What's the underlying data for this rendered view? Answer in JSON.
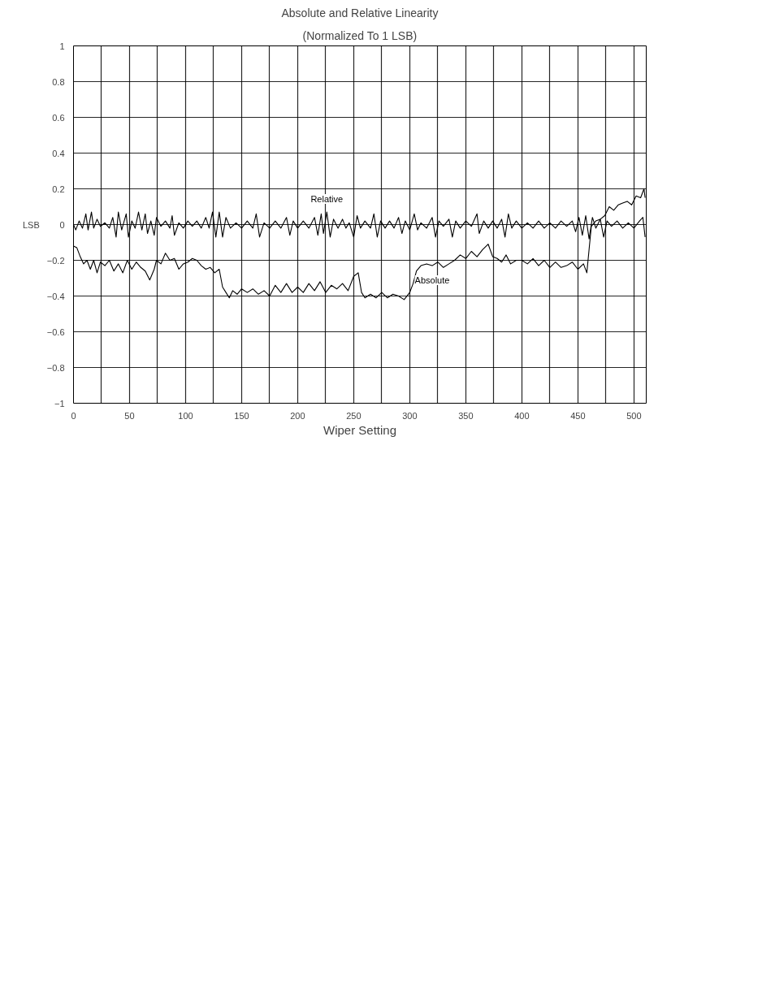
{
  "chart_data": {
    "type": "line",
    "title": "Absolute and Relative Linearity",
    "subtitle": "(Normalized To 1 LSB)",
    "xlabel": "Wiper Setting",
    "ylabel": "LSB",
    "xlim": [
      0,
      511
    ],
    "xticks": [
      0,
      {
        "value": 25,
        "label": null
      },
      50,
      {
        "value": 75,
        "label": null
      },
      100,
      {
        "value": 125,
        "label": null
      },
      150,
      {
        "value": 175,
        "label": null
      },
      200,
      {
        "value": 225,
        "label": null
      },
      250,
      {
        "value": 275,
        "label": null
      },
      300,
      {
        "value": 325,
        "label": null
      },
      350,
      {
        "value": 375,
        "label": null
      },
      400,
      {
        "value": 425,
        "label": null
      },
      450,
      {
        "value": 475,
        "label": null
      },
      500
    ],
    "ylim": [
      -1,
      1
    ],
    "yticks": [
      {
        "value": -1,
        "label": "−1"
      },
      {
        "value": -0.8,
        "label": "−0.8"
      },
      {
        "value": -0.6,
        "label": "−0.6"
      },
      {
        "value": -0.4,
        "label": "−0.4"
      },
      {
        "value": -0.2,
        "label": "−0.2"
      },
      0,
      0.2,
      0.4,
      0.6,
      0.8,
      1
    ],
    "grid": true,
    "marker": "none",
    "line_style": "solid",
    "series": [
      {
        "name": "Relative",
        "color": "#000000",
        "x": [
          0,
          2,
          5,
          8,
          11,
          13,
          16,
          18,
          21,
          24,
          28,
          32,
          35,
          38,
          40,
          43,
          47,
          49,
          52,
          55,
          58,
          61,
          64,
          66,
          69,
          72,
          74,
          78,
          82,
          86,
          88,
          90,
          94,
          98,
          102,
          106,
          110,
          114,
          118,
          121,
          124,
          127,
          130,
          133,
          136,
          140,
          145,
          150,
          155,
          160,
          163,
          166,
          170,
          175,
          180,
          185,
          190,
          193,
          196,
          200,
          205,
          210,
          215,
          218,
          221,
          223,
          226,
          229,
          232,
          236,
          240,
          243,
          246,
          250,
          253,
          256,
          260,
          265,
          268,
          271,
          274,
          278,
          282,
          286,
          290,
          293,
          296,
          300,
          304,
          307,
          310,
          315,
          320,
          323,
          326,
          330,
          335,
          338,
          341,
          345,
          350,
          355,
          360,
          362,
          366,
          370,
          374,
          378,
          382,
          385,
          388,
          391,
          395,
          400,
          405,
          410,
          415,
          420,
          425,
          430,
          435,
          440,
          445,
          448,
          451,
          454,
          457,
          460,
          463,
          466,
          470,
          473,
          476,
          480,
          485,
          490,
          495,
          500,
          505,
          508,
          510
        ],
        "values": [
          0,
          -0.03,
          0.02,
          -0.02,
          0.06,
          -0.03,
          0.07,
          -0.02,
          0.03,
          -0.01,
          0.01,
          -0.02,
          0.04,
          -0.07,
          0.07,
          -0.03,
          0.06,
          -0.07,
          0.02,
          -0.02,
          0.07,
          -0.03,
          0.06,
          -0.05,
          0.02,
          -0.06,
          0.04,
          -0.01,
          0.02,
          -0.02,
          0.05,
          -0.06,
          0.01,
          -0.02,
          0.02,
          -0.01,
          0.02,
          -0.02,
          0.04,
          -0.02,
          0.07,
          -0.07,
          0.07,
          -0.07,
          0.04,
          -0.02,
          0.01,
          -0.02,
          0.02,
          -0.02,
          0.06,
          -0.07,
          0.01,
          -0.02,
          0.02,
          -0.02,
          0.04,
          -0.06,
          0.02,
          -0.02,
          0.02,
          -0.02,
          0.04,
          -0.06,
          0.06,
          -0.05,
          0.07,
          -0.07,
          0.03,
          -0.02,
          0.03,
          -0.02,
          0.01,
          -0.07,
          0.05,
          -0.02,
          0.02,
          -0.02,
          0.06,
          -0.07,
          0.02,
          -0.02,
          0.02,
          -0.02,
          0.04,
          -0.05,
          0.02,
          -0.03,
          0.06,
          -0.03,
          0.01,
          -0.02,
          0.04,
          -0.07,
          0.02,
          -0.01,
          0.03,
          -0.07,
          0.02,
          -0.02,
          0.02,
          -0.01,
          0.06,
          -0.05,
          0.02,
          -0.02,
          0.02,
          -0.02,
          0.03,
          -0.07,
          0.06,
          -0.02,
          0.02,
          -0.02,
          0.01,
          -0.02,
          0.02,
          -0.02,
          0.01,
          -0.02,
          0.02,
          -0.01,
          0.02,
          -0.04,
          0.04,
          -0.06,
          0.05,
          -0.08,
          0.04,
          -0.02,
          0.03,
          -0.07,
          0.02,
          -0.01,
          0.02,
          -0.02,
          0.01,
          -0.02,
          0.02,
          0.04,
          -0.07
        ]
      },
      {
        "name": "Absolute",
        "color": "#000000",
        "x": [
          0,
          3,
          6,
          9,
          12,
          15,
          18,
          21,
          24,
          28,
          32,
          36,
          40,
          44,
          48,
          52,
          56,
          60,
          64,
          68,
          72,
          74,
          78,
          82,
          86,
          90,
          94,
          98,
          102,
          106,
          110,
          114,
          118,
          122,
          126,
          130,
          133,
          136,
          139,
          142,
          146,
          150,
          155,
          160,
          165,
          170,
          175,
          180,
          185,
          190,
          195,
          200,
          205,
          210,
          215,
          220,
          225,
          230,
          235,
          240,
          245,
          250,
          254,
          257,
          260,
          265,
          270,
          275,
          280,
          285,
          290,
          295,
          300,
          303,
          306,
          310,
          315,
          320,
          325,
          330,
          335,
          340,
          345,
          350,
          355,
          360,
          365,
          370,
          374,
          378,
          382,
          386,
          390,
          395,
          400,
          405,
          410,
          415,
          420,
          425,
          430,
          435,
          440,
          445,
          450,
          455,
          458,
          460,
          462,
          466,
          470,
          474,
          478,
          482,
          486,
          490,
          494,
          498,
          502,
          506,
          509,
          510
        ],
        "values": [
          -0.12,
          -0.13,
          -0.18,
          -0.22,
          -0.2,
          -0.25,
          -0.2,
          -0.27,
          -0.21,
          -0.23,
          -0.2,
          -0.26,
          -0.22,
          -0.27,
          -0.2,
          -0.25,
          -0.21,
          -0.24,
          -0.26,
          -0.31,
          -0.25,
          -0.2,
          -0.22,
          -0.16,
          -0.2,
          -0.19,
          -0.25,
          -0.22,
          -0.21,
          -0.19,
          -0.2,
          -0.23,
          -0.25,
          -0.24,
          -0.27,
          -0.25,
          -0.35,
          -0.38,
          -0.41,
          -0.37,
          -0.39,
          -0.36,
          -0.38,
          -0.36,
          -0.39,
          -0.37,
          -0.4,
          -0.34,
          -0.38,
          -0.33,
          -0.38,
          -0.35,
          -0.38,
          -0.33,
          -0.37,
          -0.32,
          -0.38,
          -0.34,
          -0.36,
          -0.33,
          -0.37,
          -0.29,
          -0.27,
          -0.38,
          -0.41,
          -0.39,
          -0.41,
          -0.38,
          -0.41,
          -0.39,
          -0.4,
          -0.42,
          -0.38,
          -0.33,
          -0.26,
          -0.23,
          -0.22,
          -0.23,
          -0.21,
          -0.24,
          -0.22,
          -0.2,
          -0.17,
          -0.19,
          -0.15,
          -0.18,
          -0.14,
          -0.11,
          -0.18,
          -0.19,
          -0.21,
          -0.17,
          -0.22,
          -0.2,
          -0.2,
          -0.22,
          -0.19,
          -0.23,
          -0.2,
          -0.24,
          -0.21,
          -0.24,
          -0.23,
          -0.21,
          -0.25,
          -0.22,
          -0.27,
          -0.14,
          -0.01,
          0.02,
          0.03,
          0.05,
          0.1,
          0.08,
          0.11,
          0.12,
          0.13,
          0.11,
          0.16,
          0.15,
          0.2,
          0.15
        ]
      }
    ]
  }
}
